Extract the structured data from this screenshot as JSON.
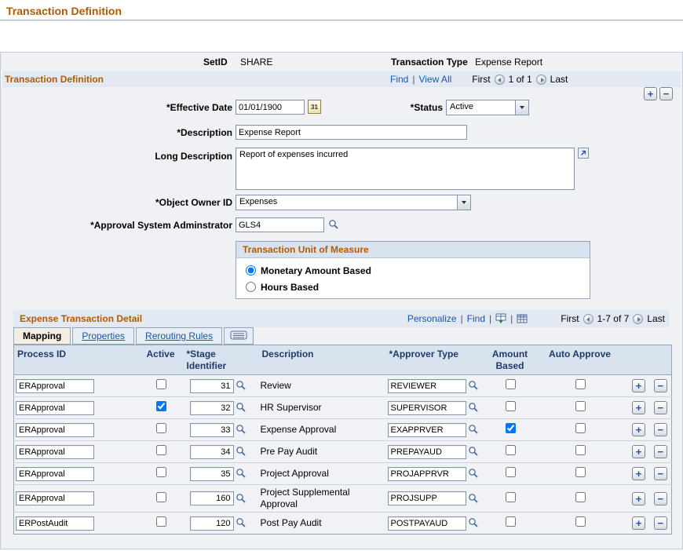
{
  "page": {
    "title": "Transaction Definition"
  },
  "icons": {
    "plus": "+",
    "minus": "−",
    "calendar": "31",
    "separator": "|"
  },
  "info_bar": {
    "setid_label": "SetID",
    "setid_value": "SHARE",
    "transaction_type_label": "Transaction Type",
    "transaction_type_value": "Expense Report"
  },
  "section": {
    "title": "Transaction Definition",
    "links": {
      "find": "Find",
      "view_all": "View All"
    },
    "nav": {
      "first": "First",
      "page": "1 of 1",
      "last": "Last"
    }
  },
  "form": {
    "effective_date": {
      "label": "*Effective Date",
      "value": "01/01/1900"
    },
    "status": {
      "label": "*Status",
      "value": "Active"
    },
    "description": {
      "label": "*Description",
      "value": "Expense Report"
    },
    "long_description": {
      "label": "Long Description",
      "value": "Report of expenses incurred"
    },
    "object_owner_id": {
      "label": "*Object Owner ID",
      "value": "Expenses"
    },
    "approval_admin": {
      "label": "*Approval System Adminstrator",
      "value": "GLS4"
    }
  },
  "unit_of_measure": {
    "title": "Transaction Unit of Measure",
    "options": [
      {
        "label": "Monetary Amount Based",
        "selected": true
      },
      {
        "label": "Hours Based",
        "selected": false
      }
    ]
  },
  "detail": {
    "title": "Expense Transaction Detail",
    "links": {
      "personalize": "Personalize",
      "find": "Find"
    },
    "nav": {
      "first": "First",
      "page": "1-7 of 7",
      "last": "Last"
    },
    "tabs": [
      "Mapping",
      "Properties",
      "Rerouting Rules"
    ],
    "active_tab": "Mapping",
    "columns": [
      "Process ID",
      "Active",
      "*Stage Identifier",
      "Description",
      "*Approver Type",
      "Amount Based",
      "Auto Approve"
    ],
    "rows": [
      {
        "process_id": "ERApproval",
        "active": false,
        "stage": "31",
        "description": "Review",
        "approver_type": "REVIEWER",
        "amount_based": false,
        "auto_approve": false
      },
      {
        "process_id": "ERApproval",
        "active": true,
        "stage": "32",
        "description": "HR Supervisor",
        "approver_type": "SUPERVISOR",
        "amount_based": false,
        "auto_approve": false
      },
      {
        "process_id": "ERApproval",
        "active": false,
        "stage": "33",
        "description": "Expense Approval",
        "approver_type": "EXAPPRVER",
        "amount_based": true,
        "auto_approve": false
      },
      {
        "process_id": "ERApproval",
        "active": false,
        "stage": "34",
        "description": "Pre Pay Audit",
        "approver_type": "PREPAYAUD",
        "amount_based": false,
        "auto_approve": false
      },
      {
        "process_id": "ERApproval",
        "active": false,
        "stage": "35",
        "description": "Project Approval",
        "approver_type": "PROJAPPRVR",
        "amount_based": false,
        "auto_approve": false
      },
      {
        "process_id": "ERApproval",
        "active": false,
        "stage": "160",
        "description": "Project Supplemental Approval",
        "approver_type": "PROJSUPP",
        "amount_based": false,
        "auto_approve": false
      },
      {
        "process_id": "ERPostAudit",
        "active": false,
        "stage": "120",
        "description": "Post Pay Audit",
        "approver_type": "POSTPAYAUD",
        "amount_based": false,
        "auto_approve": false
      }
    ]
  }
}
